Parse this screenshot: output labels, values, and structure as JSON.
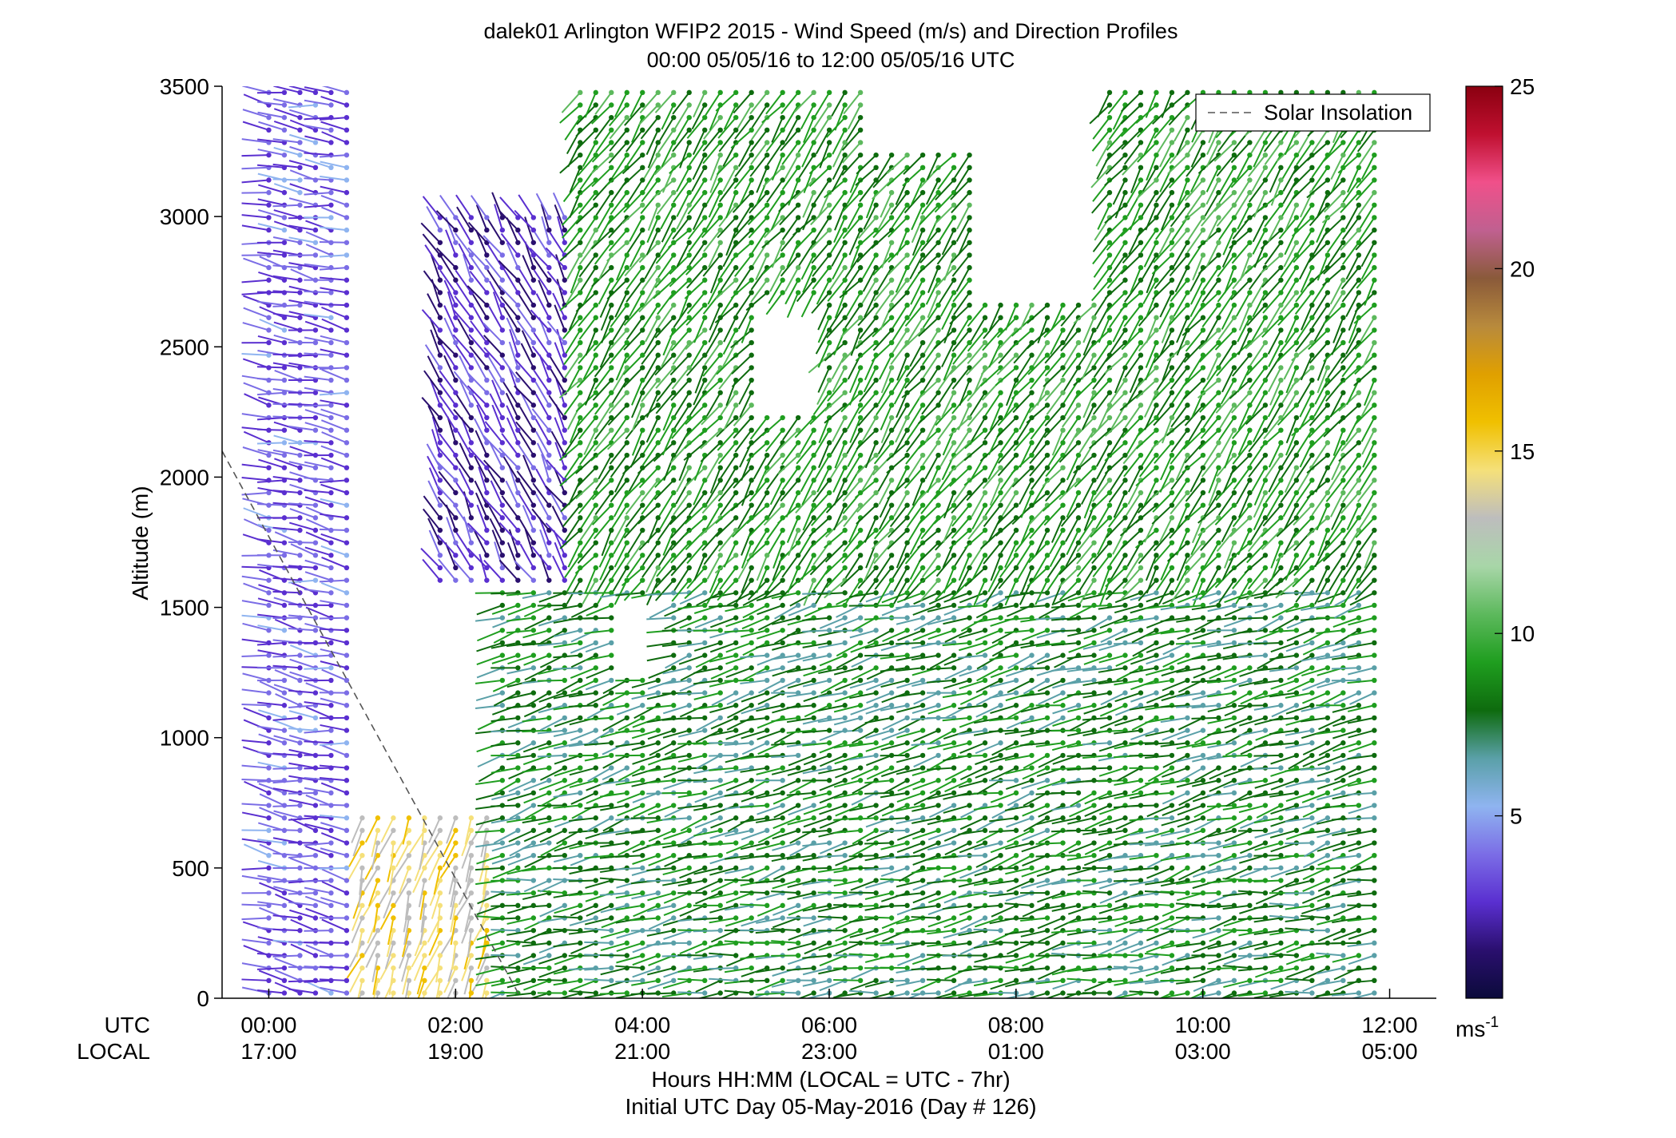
{
  "chart_data": {
    "type": "wind-barb profile",
    "title_line1": "dalek01 Arlington WFIP2 2015 - Wind Speed (m/s) and Direction Profiles",
    "title_line2": "00:00 05/05/16 to 12:00 05/05/16  UTC",
    "ylabel": "Altitude (m)",
    "ylim": [
      0,
      3500
    ],
    "yticks": [
      "0",
      "500",
      "1000",
      "1500",
      "2000",
      "2500",
      "3000",
      "3500"
    ],
    "xlim_hours": [
      -0.5,
      12.5
    ],
    "row_label_utc": "UTC",
    "row_label_local": "LOCAL",
    "xticks_utc": [
      "00:00",
      "02:00",
      "04:00",
      "06:00",
      "08:00",
      "10:00",
      "12:00"
    ],
    "xticks_local": [
      "17:00",
      "19:00",
      "21:00",
      "23:00",
      "01:00",
      "03:00",
      "05:00"
    ],
    "xlabel_line1": "Hours HH:MM  (LOCAL = UTC - 7hr)",
    "xlabel_line2": "Initial UTC Day 05-May-2016 (Day # 126)",
    "legend": {
      "entries": [
        "Solar Insolation"
      ],
      "placement": "top-right",
      "line_style": "dashed",
      "line_color": "#555555"
    },
    "solar_insolation_line": {
      "x_hours": [
        -0.5,
        2.7
      ],
      "altitude_m": [
        2100,
        0
      ]
    },
    "colorbar": {
      "label": "ms",
      "label_superscript": "-1",
      "range": [
        0,
        25
      ],
      "ticks": [
        "5",
        "10",
        "15",
        "20",
        "25"
      ],
      "colors": [
        "#0b0b3b",
        "#2a0f6e",
        "#5a2fd0",
        "#7b6de6",
        "#8fb4f0",
        "#5aa0a8",
        "#0e6b0e",
        "#1f9e1f",
        "#5db95d",
        "#a8d6a8",
        "#bdbdbd",
        "#f5e07a",
        "#f0c000",
        "#e0a000",
        "#b88a3c",
        "#8a5a3a",
        "#c06090",
        "#f0508a",
        "#c01030",
        "#8a0010"
      ]
    },
    "barb_grid": {
      "time_step_hours": 0.1667,
      "gate_spacing_m": 48,
      "note_visible": "barbs colored by wind speed; dot marks the measurement gate"
    },
    "data_gaps": [
      {
        "label": "",
        "x_hours": [
          5.3,
          6.0
        ],
        "altitude_m": [
          2250,
          2700
        ]
      },
      {
        "label": "",
        "x_hours": [
          3.7,
          4.2
        ],
        "altitude_m": [
          1250,
          1550
        ]
      },
      {
        "label": "",
        "x_hours": [
          7.6,
          9.0
        ],
        "altitude_m": [
          2700,
          3500
        ]
      },
      {
        "label": "",
        "x_hours": [
          6.5,
          7.7
        ],
        "altitude_m": [
          3250,
          3500
        ]
      },
      {
        "label": "",
        "x_hours": [
          0.9,
          3.1
        ],
        "altitude_m": [
          3050,
          3500
        ]
      }
    ],
    "regimes": [
      {
        "x_hours": [
          0.0,
          0.9
        ],
        "altitude_m": [
          0,
          3500
        ],
        "speed_ms": 3.5,
        "dir_deg": 280
      },
      {
        "x_hours": [
          0.9,
          2.5
        ],
        "altitude_m": [
          0,
          700
        ],
        "speed_ms": 14,
        "dir_deg": 200
      },
      {
        "x_hours": [
          2.5,
          12.0
        ],
        "altitude_m": [
          0,
          500
        ],
        "speed_ms": 8,
        "dir_deg": 260
      },
      {
        "x_hours": [
          2.5,
          12.0
        ],
        "altitude_m": [
          500,
          1600
        ],
        "speed_ms": 8,
        "dir_deg": 255
      },
      {
        "x_hours": [
          1.7,
          3.2
        ],
        "altitude_m": [
          1600,
          3000
        ],
        "speed_ms": 2.5,
        "dir_deg": 330
      },
      {
        "x_hours": [
          3.2,
          12.0
        ],
        "altitude_m": [
          1600,
          3500
        ],
        "speed_ms": 9,
        "dir_deg": 215
      }
    ]
  }
}
